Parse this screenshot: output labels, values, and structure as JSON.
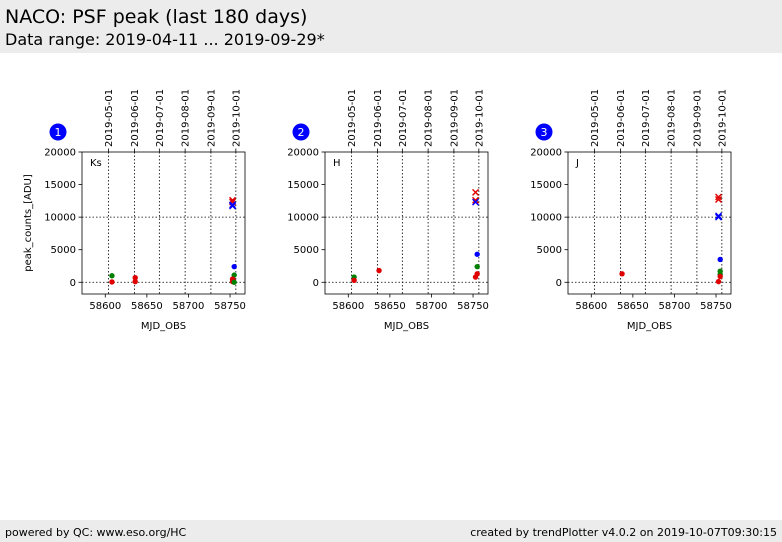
{
  "header": {
    "title": "NACO: PSF peak (last 180 days)",
    "subtitle": "Data range: 2019-04-11 ... 2019-09-29*"
  },
  "footer": {
    "left": "powered by QC: www.eso.org/HC",
    "right": "created by trendPlotter v4.0.2 on 2019-10-07T09:30:15"
  },
  "colors": {
    "red": "#e00000",
    "green": "#008000",
    "blue": "#0000ff",
    "badge": "#0000ff"
  },
  "chart_data": [
    {
      "type": "scatter",
      "panel_number": "1",
      "filter": "Ks",
      "xlabel": "MJD_OBS",
      "ylabel": "peak_counts_[ADU]",
      "xlim": [
        58572,
        58768
      ],
      "ylim": [
        -1800,
        20000
      ],
      "xticks": [
        58600,
        58650,
        58700,
        58750
      ],
      "yticks": [
        0,
        5000,
        10000,
        15000,
        20000
      ],
      "top_ticks": [
        {
          "label": "2019-05-01",
          "mjd": 58604
        },
        {
          "label": "2019-06-01",
          "mjd": 58635
        },
        {
          "label": "2019-07-01",
          "mjd": 58665
        },
        {
          "label": "2019-08-01",
          "mjd": 58696
        },
        {
          "label": "2019-09-01",
          "mjd": 58727
        },
        {
          "label": "2019-10-01",
          "mjd": 58757
        }
      ],
      "reference_line": 10000,
      "points": [
        {
          "x": 58608,
          "y": 1000,
          "color": "green",
          "marker": "dot"
        },
        {
          "x": 58608,
          "y": 50,
          "color": "red",
          "marker": "dot"
        },
        {
          "x": 58636,
          "y": 700,
          "color": "red",
          "marker": "dot"
        },
        {
          "x": 58636,
          "y": 100,
          "color": "red",
          "marker": "dot"
        },
        {
          "x": 58753,
          "y": 12600,
          "color": "red",
          "marker": "x"
        },
        {
          "x": 58753,
          "y": 12300,
          "color": "red",
          "marker": "x"
        },
        {
          "x": 58753,
          "y": 11900,
          "color": "blue",
          "marker": "x"
        },
        {
          "x": 58753,
          "y": 11700,
          "color": "blue",
          "marker": "x"
        },
        {
          "x": 58755,
          "y": 2400,
          "color": "blue",
          "marker": "dot"
        },
        {
          "x": 58755,
          "y": 1100,
          "color": "green",
          "marker": "dot"
        },
        {
          "x": 58753,
          "y": 500,
          "color": "red",
          "marker": "dot"
        },
        {
          "x": 58754,
          "y": 300,
          "color": "red",
          "marker": "dot"
        },
        {
          "x": 58753,
          "y": 100,
          "color": "red",
          "marker": "dot"
        },
        {
          "x": 58755,
          "y": 0,
          "color": "green",
          "marker": "dot"
        }
      ]
    },
    {
      "type": "scatter",
      "panel_number": "2",
      "filter": "H",
      "xlabel": "MJD_OBS",
      "ylabel": "",
      "xlim": [
        58572,
        58768
      ],
      "ylim": [
        -1800,
        20000
      ],
      "xticks": [
        58600,
        58650,
        58700,
        58750
      ],
      "yticks": [
        0,
        5000,
        10000,
        15000,
        20000
      ],
      "top_ticks": [
        {
          "label": "2019-05-01",
          "mjd": 58604
        },
        {
          "label": "2019-06-01",
          "mjd": 58635
        },
        {
          "label": "2019-07-01",
          "mjd": 58665
        },
        {
          "label": "2019-08-01",
          "mjd": 58696
        },
        {
          "label": "2019-09-01",
          "mjd": 58727
        },
        {
          "label": "2019-10-01",
          "mjd": 58757
        }
      ],
      "reference_line": 10000,
      "points": [
        {
          "x": 58607,
          "y": 800,
          "color": "green",
          "marker": "dot"
        },
        {
          "x": 58607,
          "y": 300,
          "color": "red",
          "marker": "dot"
        },
        {
          "x": 58637,
          "y": 1800,
          "color": "red",
          "marker": "dot"
        },
        {
          "x": 58753,
          "y": 13800,
          "color": "red",
          "marker": "x"
        },
        {
          "x": 58753,
          "y": 12600,
          "color": "red",
          "marker": "x"
        },
        {
          "x": 58753,
          "y": 12300,
          "color": "blue",
          "marker": "x"
        },
        {
          "x": 58755,
          "y": 4300,
          "color": "blue",
          "marker": "dot"
        },
        {
          "x": 58755,
          "y": 2400,
          "color": "green",
          "marker": "dot"
        },
        {
          "x": 58755,
          "y": 1300,
          "color": "red",
          "marker": "dot"
        },
        {
          "x": 58753,
          "y": 800,
          "color": "red",
          "marker": "dot"
        }
      ]
    },
    {
      "type": "scatter",
      "panel_number": "3",
      "filter": "J",
      "xlabel": "MJD_OBS",
      "ylabel": "",
      "xlim": [
        58572,
        58768
      ],
      "ylim": [
        -1800,
        20000
      ],
      "xticks": [
        58600,
        58650,
        58700,
        58750
      ],
      "yticks": [
        0,
        5000,
        10000,
        15000,
        20000
      ],
      "top_ticks": [
        {
          "label": "2019-05-01",
          "mjd": 58604
        },
        {
          "label": "2019-06-01",
          "mjd": 58635
        },
        {
          "label": "2019-07-01",
          "mjd": 58665
        },
        {
          "label": "2019-08-01",
          "mjd": 58696
        },
        {
          "label": "2019-09-01",
          "mjd": 58727
        },
        {
          "label": "2019-10-01",
          "mjd": 58757
        }
      ],
      "reference_line": 10000,
      "points": [
        {
          "x": 58637,
          "y": 1300,
          "color": "red",
          "marker": "dot"
        },
        {
          "x": 58753,
          "y": 13100,
          "color": "red",
          "marker": "x"
        },
        {
          "x": 58753,
          "y": 12700,
          "color": "red",
          "marker": "x"
        },
        {
          "x": 58753,
          "y": 10200,
          "color": "blue",
          "marker": "x"
        },
        {
          "x": 58753,
          "y": 10000,
          "color": "blue",
          "marker": "x"
        },
        {
          "x": 58755,
          "y": 3500,
          "color": "blue",
          "marker": "dot"
        },
        {
          "x": 58755,
          "y": 1700,
          "color": "green",
          "marker": "dot"
        },
        {
          "x": 58755,
          "y": 1200,
          "color": "green",
          "marker": "dot"
        },
        {
          "x": 58755,
          "y": 900,
          "color": "red",
          "marker": "dot"
        },
        {
          "x": 58753,
          "y": 100,
          "color": "red",
          "marker": "dot"
        }
      ]
    }
  ]
}
